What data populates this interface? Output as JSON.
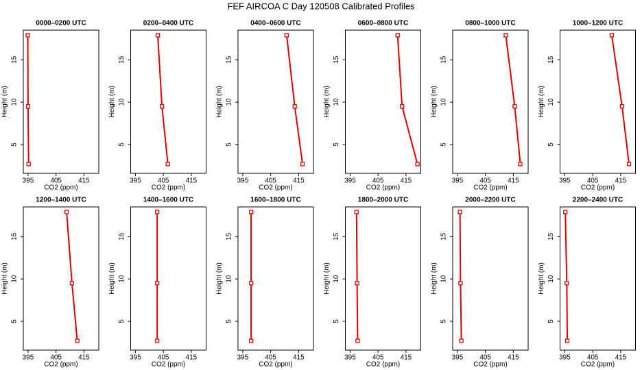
{
  "title": "FEF AIRCOA C  Day 120508  Calibrated Profiles",
  "chart_data": [
    {
      "type": "line",
      "title": "0000–0200 UTC",
      "xlabel": "CO2 (ppm)",
      "ylabel": "Height (m)",
      "x": [
        394.9,
        395.0,
        395.2
      ],
      "values": [
        17.9,
        9.5,
        2.7
      ],
      "color": "#e00000",
      "xlim": [
        393.3,
        420.3
      ],
      "ylim": [
        1.6,
        18.5
      ],
      "xticks": [
        395,
        405,
        415
      ],
      "yticks": [
        5,
        10,
        15
      ]
    },
    {
      "type": "line",
      "title": "0200–0400 UTC",
      "xlabel": "CO2 (ppm)",
      "ylabel": "Height (m)",
      "x": [
        403.0,
        404.5,
        406.6
      ],
      "values": [
        17.9,
        9.5,
        2.7
      ],
      "color": "#e00000",
      "xlim": [
        393.3,
        420.3
      ],
      "ylim": [
        1.6,
        18.5
      ],
      "xticks": [
        395,
        405,
        415
      ],
      "yticks": [
        5,
        10,
        15
      ]
    },
    {
      "type": "line",
      "title": "0400–0600 UTC",
      "xlabel": "CO2 (ppm)",
      "ylabel": "Height (m)",
      "x": [
        410.7,
        413.6,
        416.4
      ],
      "values": [
        17.9,
        9.5,
        2.7
      ],
      "color": "#e00000",
      "xlim": [
        393.3,
        420.3
      ],
      "ylim": [
        1.6,
        18.5
      ],
      "xticks": [
        395,
        405,
        415
      ],
      "yticks": [
        5,
        10,
        15
      ]
    },
    {
      "type": "line",
      "title": "0600–0800 UTC",
      "xlabel": "CO2 (ppm)",
      "ylabel": "Height (m)",
      "x": [
        412.0,
        413.6,
        419.1
      ],
      "values": [
        17.9,
        9.5,
        2.7
      ],
      "color": "#e00000",
      "xlim": [
        393.3,
        420.3
      ],
      "ylim": [
        1.6,
        18.5
      ],
      "xticks": [
        395,
        405,
        415
      ],
      "yticks": [
        5,
        10,
        15
      ]
    },
    {
      "type": "line",
      "title": "0800–1000 UTC",
      "xlabel": "CO2 (ppm)",
      "ylabel": "Height (m)",
      "x": [
        412.3,
        415.5,
        417.5
      ],
      "values": [
        17.9,
        9.5,
        2.7
      ],
      "color": "#e00000",
      "xlim": [
        393.3,
        420.3
      ],
      "ylim": [
        1.6,
        18.5
      ],
      "xticks": [
        395,
        405,
        415
      ],
      "yticks": [
        5,
        10,
        15
      ]
    },
    {
      "type": "line",
      "title": "1000–1200 UTC",
      "xlabel": "CO2 (ppm)",
      "ylabel": "Height (m)",
      "x": [
        411.8,
        415.5,
        418.0
      ],
      "values": [
        17.9,
        9.5,
        2.7
      ],
      "color": "#e00000",
      "xlim": [
        393.3,
        420.3
      ],
      "ylim": [
        1.6,
        18.5
      ],
      "xticks": [
        395,
        405,
        415
      ],
      "yticks": [
        5,
        10,
        15
      ]
    },
    {
      "type": "line",
      "title": "1200–1400 UTC",
      "xlabel": "CO2 (ppm)",
      "ylabel": "Height (m)",
      "x": [
        408.8,
        410.7,
        412.6
      ],
      "values": [
        17.9,
        9.5,
        2.7
      ],
      "color": "#e00000",
      "xlim": [
        393.3,
        420.3
      ],
      "ylim": [
        1.6,
        18.5
      ],
      "xticks": [
        395,
        405,
        415
      ],
      "yticks": [
        5,
        10,
        15
      ]
    },
    {
      "type": "line",
      "title": "1400–1600 UTC",
      "xlabel": "CO2 (ppm)",
      "ylabel": "Height (m)",
      "x": [
        402.8,
        402.8,
        402.8
      ],
      "values": [
        17.9,
        9.5,
        2.7
      ],
      "color": "#e00000",
      "xlim": [
        393.3,
        420.3
      ],
      "ylim": [
        1.6,
        18.5
      ],
      "xticks": [
        395,
        405,
        415
      ],
      "yticks": [
        5,
        10,
        15
      ]
    },
    {
      "type": "line",
      "title": "1600–1800 UTC",
      "xlabel": "CO2 (ppm)",
      "ylabel": "Height (m)",
      "x": [
        398.0,
        398.0,
        398.0
      ],
      "values": [
        17.9,
        9.5,
        2.7
      ],
      "color": "#e00000",
      "xlim": [
        393.3,
        420.3
      ],
      "ylim": [
        1.6,
        18.5
      ],
      "xticks": [
        395,
        405,
        415
      ],
      "yticks": [
        5,
        10,
        15
      ]
    },
    {
      "type": "line",
      "title": "1800–2000 UTC",
      "xlabel": "CO2 (ppm)",
      "ylabel": "Height (m)",
      "x": [
        397.3,
        397.5,
        397.7
      ],
      "values": [
        17.9,
        9.5,
        2.7
      ],
      "color": "#e00000",
      "xlim": [
        393.3,
        420.3
      ],
      "ylim": [
        1.6,
        18.5
      ],
      "xticks": [
        395,
        405,
        415
      ],
      "yticks": [
        5,
        10,
        15
      ]
    },
    {
      "type": "line",
      "title": "2000–2200 UTC",
      "xlabel": "CO2 (ppm)",
      "ylabel": "Height (m)",
      "x": [
        395.9,
        396.1,
        396.4
      ],
      "values": [
        17.9,
        9.5,
        2.7
      ],
      "color": "#e00000",
      "xlim": [
        393.3,
        420.3
      ],
      "ylim": [
        1.6,
        18.5
      ],
      "xticks": [
        395,
        405,
        415
      ],
      "yticks": [
        5,
        10,
        15
      ]
    },
    {
      "type": "line",
      "title": "2200–2400 UTC",
      "xlabel": "CO2 (ppm)",
      "ylabel": "Height (m)",
      "x": [
        395.2,
        395.7,
        395.9
      ],
      "values": [
        17.9,
        9.5,
        2.7
      ],
      "color": "#e00000",
      "xlim": [
        393.3,
        420.3
      ],
      "ylim": [
        1.6,
        18.5
      ],
      "xticks": [
        395,
        405,
        415
      ],
      "yticks": [
        5,
        10,
        15
      ]
    }
  ]
}
